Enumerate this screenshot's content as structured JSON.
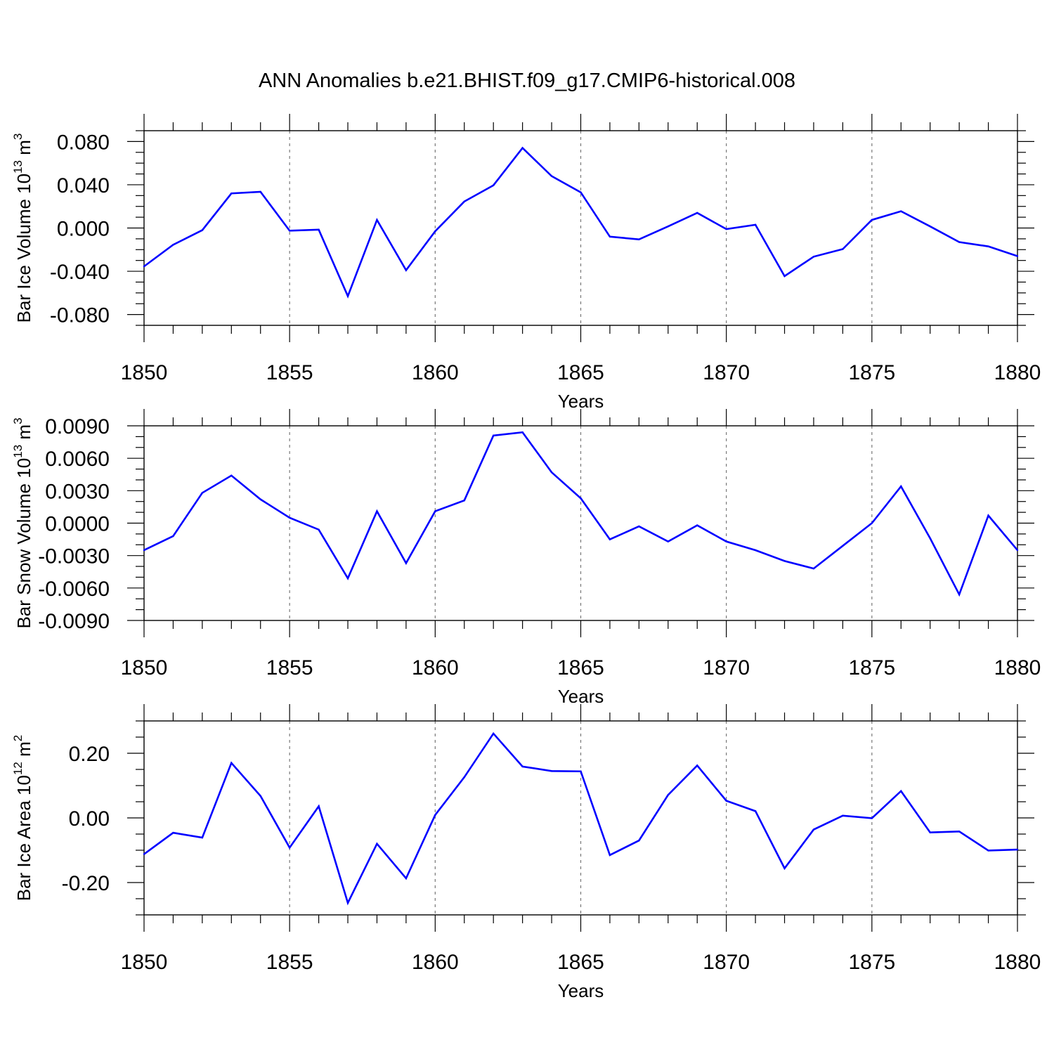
{
  "figure": {
    "title": "ANN Anomalies b.e21.BHIST.f09_g17.CMIP6-historical.008"
  },
  "colors": {
    "series": "#0000ff",
    "axes": "#000000",
    "grid": "#777777"
  },
  "chart_data": [
    {
      "type": "line",
      "name": "panel-ice-volume",
      "title": "",
      "xlabel": "Years",
      "ylabel": {
        "base": "Bar Ice Volume 10",
        "sup": "13",
        "unit": " m",
        "unit_sup": "3"
      },
      "xlim": [
        1850,
        1880
      ],
      "ylim": [
        -0.09,
        0.09
      ],
      "xticks": [
        1850,
        1855,
        1860,
        1865,
        1870,
        1875,
        1880
      ],
      "xtick_labels": [
        "1850",
        "1855",
        "1860",
        "1865",
        "1870",
        "1875",
        "1880"
      ],
      "yticks": [
        0.08,
        0.04,
        0.0,
        -0.04,
        -0.08
      ],
      "ytick_labels": [
        "0.080",
        "0.040",
        "0.000",
        "-0.040",
        "-0.080"
      ],
      "ymajor_step": 0.04,
      "yminor_step": 0.01,
      "grid": "vertical dashed at major x ticks",
      "x": [
        1850,
        1851,
        1852,
        1853,
        1854,
        1855,
        1856,
        1857,
        1858,
        1859,
        1860,
        1861,
        1862,
        1863,
        1864,
        1865,
        1866,
        1867,
        1868,
        1869,
        1870,
        1871,
        1872,
        1873,
        1874,
        1875,
        1876,
        1877,
        1878,
        1879,
        1880
      ],
      "series": [
        {
          "name": "Bar Ice Volume",
          "values": [
            -0.0355,
            -0.0155,
            -0.002,
            0.032,
            0.0335,
            -0.0025,
            -0.0015,
            -0.063,
            0.0075,
            -0.039,
            -0.003,
            0.0245,
            0.0395,
            0.074,
            0.048,
            0.033,
            -0.008,
            -0.0105,
            0.0015,
            0.014,
            -0.001,
            0.003,
            -0.0445,
            -0.0265,
            -0.0195,
            0.0075,
            0.0155,
            0.0015,
            -0.013,
            -0.017,
            -0.026
          ]
        }
      ]
    },
    {
      "type": "line",
      "name": "panel-snow-volume",
      "title": "",
      "xlabel": "Years",
      "ylabel": {
        "base": "Bar Snow Volume 10",
        "sup": "13",
        "unit": " m",
        "unit_sup": "3"
      },
      "xlim": [
        1850,
        1880
      ],
      "ylim": [
        -0.009,
        0.009
      ],
      "xticks": [
        1850,
        1855,
        1860,
        1865,
        1870,
        1875,
        1880
      ],
      "xtick_labels": [
        "1850",
        "1855",
        "1860",
        "1865",
        "1870",
        "1875",
        "1880"
      ],
      "yticks": [
        0.009,
        0.006,
        0.003,
        0.0,
        -0.003,
        -0.006,
        -0.009
      ],
      "ytick_labels": [
        "0.0090",
        "0.0060",
        "0.0030",
        "0.0000",
        "-0.0030",
        "-0.0060",
        "-0.0090"
      ],
      "ymajor_step": 0.003,
      "yminor_step": 0.001,
      "grid": "vertical dashed at major x ticks",
      "x": [
        1850,
        1851,
        1852,
        1853,
        1854,
        1855,
        1856,
        1857,
        1858,
        1859,
        1860,
        1861,
        1862,
        1863,
        1864,
        1865,
        1866,
        1867,
        1868,
        1869,
        1870,
        1871,
        1872,
        1873,
        1874,
        1875,
        1876,
        1877,
        1878,
        1879,
        1880
      ],
      "series": [
        {
          "name": "Bar Snow Volume",
          "values": [
            -0.0025,
            -0.0012,
            0.0028,
            0.0044,
            0.0022,
            0.0005,
            -0.0006,
            -0.0051,
            0.0011,
            -0.0037,
            0.0011,
            0.0021,
            0.0081,
            0.0084,
            0.0047,
            0.0023,
            -0.0015,
            -0.0003,
            -0.0017,
            -0.0002,
            -0.0017,
            -0.0025,
            -0.0035,
            -0.0042,
            -0.0021,
            0.0,
            0.0034,
            -0.0014,
            -0.0066,
            0.0007,
            -0.0025
          ]
        }
      ]
    },
    {
      "type": "line",
      "name": "panel-ice-area",
      "title": "",
      "xlabel": "Years",
      "ylabel": {
        "base": "Bar Ice Area 10",
        "sup": "12",
        "unit": " m",
        "unit_sup": "2"
      },
      "xlim": [
        1850,
        1880
      ],
      "ylim": [
        -0.3,
        0.3
      ],
      "xticks": [
        1850,
        1855,
        1860,
        1865,
        1870,
        1875,
        1880
      ],
      "xtick_labels": [
        "1850",
        "1855",
        "1860",
        "1865",
        "1870",
        "1875",
        "1880"
      ],
      "yticks": [
        0.2,
        0.0,
        -0.2
      ],
      "ytick_labels": [
        "0.20",
        "0.00",
        "-0.20"
      ],
      "ymajor_step": 0.2,
      "yminor_step": 0.05,
      "grid": "vertical dashed at major x ticks",
      "x": [
        1850,
        1851,
        1852,
        1853,
        1854,
        1855,
        1856,
        1857,
        1858,
        1859,
        1860,
        1861,
        1862,
        1863,
        1864,
        1865,
        1866,
        1867,
        1868,
        1869,
        1870,
        1871,
        1872,
        1873,
        1874,
        1875,
        1876,
        1877,
        1878,
        1879,
        1880
      ],
      "series": [
        {
          "name": "Bar Ice Area",
          "values": [
            -0.112,
            -0.046,
            -0.061,
            0.17,
            0.068,
            -0.092,
            0.036,
            -0.263,
            -0.08,
            -0.187,
            0.009,
            0.126,
            0.261,
            0.159,
            0.145,
            0.144,
            -0.115,
            -0.07,
            0.071,
            0.162,
            0.053,
            0.021,
            -0.156,
            -0.036,
            0.007,
            -0.001,
            0.083,
            -0.045,
            -0.042,
            -0.101,
            -0.098
          ]
        }
      ]
    }
  ]
}
